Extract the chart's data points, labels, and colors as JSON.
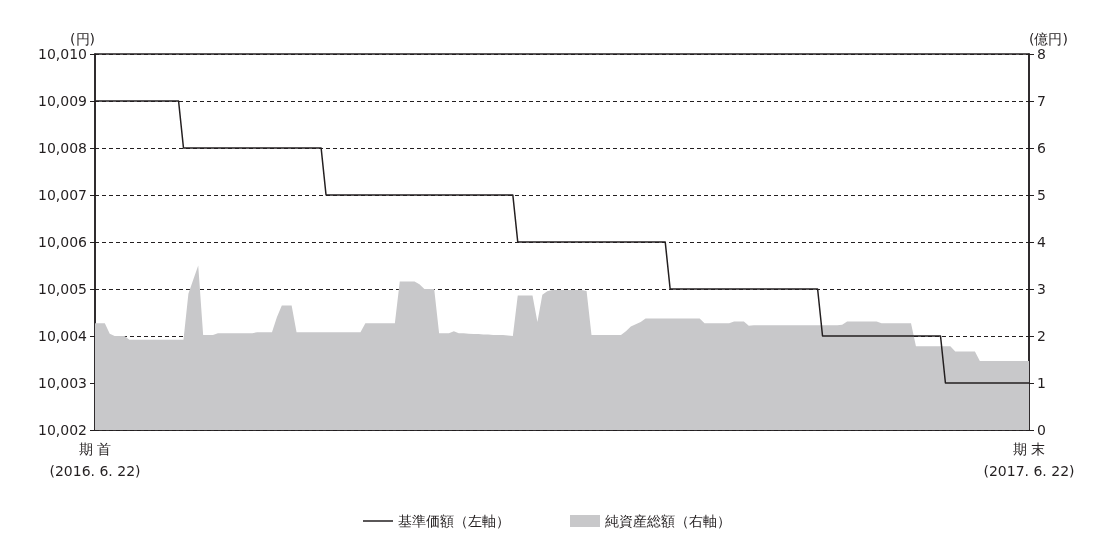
{
  "chart_data": {
    "type": "line",
    "ylabel": "(円)",
    "y2label": "(億円)",
    "categories": [
      "期 首\n(2016. 6. 22)",
      null,
      null,
      null,
      null,
      null,
      null,
      null,
      null,
      null,
      null,
      null,
      null,
      null,
      null,
      null,
      null,
      null,
      null,
      null,
      null,
      null,
      null,
      null,
      null,
      null,
      null,
      null,
      null,
      null,
      null,
      null,
      null,
      null,
      null,
      null,
      null,
      null,
      null,
      null,
      null,
      null,
      null,
      null,
      null,
      null,
      null,
      null,
      null,
      null,
      null,
      null,
      null,
      null,
      null,
      null,
      null,
      null,
      null,
      null,
      null,
      null,
      null,
      null,
      null,
      null,
      null,
      null,
      null,
      null,
      null,
      null,
      null,
      null,
      null,
      null,
      null,
      null,
      null,
      null,
      null,
      null,
      null,
      null,
      null,
      null,
      null,
      null,
      null,
      null,
      null,
      null,
      null,
      null,
      null,
      null,
      null,
      null,
      null,
      null,
      null,
      null,
      null,
      null,
      null,
      null,
      null,
      null,
      null,
      null,
      null,
      null,
      null,
      null,
      null,
      null,
      null,
      null,
      null,
      null,
      null,
      null,
      null,
      null,
      null,
      null,
      null,
      null,
      null,
      null,
      null,
      null,
      null,
      null,
      null,
      null,
      null,
      null,
      null,
      null,
      null,
      null,
      null,
      null,
      null,
      null,
      null,
      null,
      null,
      null,
      null,
      null,
      null,
      null,
      null,
      null,
      null,
      null,
      null,
      null,
      null,
      null,
      null,
      null,
      null,
      null,
      null,
      null,
      null,
      null,
      null,
      null,
      null,
      null,
      null,
      null,
      null,
      null,
      null,
      null,
      null,
      null,
      null,
      null,
      null,
      null,
      null,
      null,
      null,
      null,
      "期 末\n(2017. 6. 22)"
    ],
    "series": [
      {
        "name": "基準価額（左軸）",
        "type": "line",
        "color": "#231f20",
        "values": [
          10009,
          10009,
          10009,
          10009,
          10009,
          10009,
          10009,
          10009,
          10009,
          10009,
          10009,
          10009,
          10009,
          10009,
          10009,
          10009,
          10009,
          10009,
          10008,
          10008,
          10008,
          10008,
          10008,
          10008,
          10008,
          10008,
          10008,
          10008,
          10008,
          10008,
          10008,
          10008,
          10008,
          10008,
          10008,
          10008,
          10008,
          10008,
          10008,
          10008,
          10008,
          10008,
          10008,
          10008,
          10008,
          10008,
          10008,
          10007,
          10007,
          10007,
          10007,
          10007,
          10007,
          10007,
          10007,
          10007,
          10007,
          10007,
          10007,
          10007,
          10007,
          10007,
          10007,
          10007,
          10007,
          10007,
          10007,
          10007,
          10007,
          10007,
          10007,
          10007,
          10007,
          10007,
          10007,
          10007,
          10007,
          10007,
          10007,
          10007,
          10007,
          10007,
          10007,
          10007,
          10007,
          10007,
          10006,
          10006,
          10006,
          10006,
          10006,
          10006,
          10006,
          10006,
          10006,
          10006,
          10006,
          10006,
          10006,
          10006,
          10006,
          10006,
          10006,
          10006,
          10006,
          10006,
          10006,
          10006,
          10006,
          10006,
          10006,
          10006,
          10006,
          10006,
          10006,
          10006,
          10006,
          10005,
          10005,
          10005,
          10005,
          10005,
          10005,
          10005,
          10005,
          10005,
          10005,
          10005,
          10005,
          10005,
          10005,
          10005,
          10005,
          10005,
          10005,
          10005,
          10005,
          10005,
          10005,
          10005,
          10005,
          10005,
          10005,
          10005,
          10005,
          10005,
          10005,
          10005,
          10004,
          10004,
          10004,
          10004,
          10004,
          10004,
          10004,
          10004,
          10004,
          10004,
          10004,
          10004,
          10004,
          10004,
          10004,
          10004,
          10004,
          10004,
          10004,
          10004,
          10004,
          10004,
          10004,
          10004,
          10004,
          10003,
          10003,
          10003,
          10003,
          10003,
          10003,
          10003,
          10003,
          10003,
          10003,
          10003,
          10003,
          10003,
          10003,
          10003,
          10003,
          10003,
          10003
        ]
      },
      {
        "name": "純資産総額（右軸）",
        "type": "area",
        "axis": "y2",
        "color": "#c8c8ca",
        "values": [
          2.27,
          2.27,
          2.27,
          2.05,
          2.0,
          2.0,
          2.0,
          1.92,
          1.92,
          1.92,
          1.92,
          1.92,
          1.92,
          1.92,
          1.92,
          1.92,
          1.92,
          1.92,
          1.92,
          2.9,
          3.2,
          3.5,
          2.02,
          2.02,
          2.02,
          2.06,
          2.06,
          2.06,
          2.06,
          2.06,
          2.06,
          2.06,
          2.06,
          2.08,
          2.08,
          2.08,
          2.08,
          2.4,
          2.65,
          2.65,
          2.65,
          2.08,
          2.08,
          2.08,
          2.08,
          2.08,
          2.08,
          2.08,
          2.08,
          2.08,
          2.08,
          2.08,
          2.08,
          2.08,
          2.08,
          2.27,
          2.27,
          2.27,
          2.27,
          2.27,
          2.27,
          2.27,
          3.16,
          3.16,
          3.16,
          3.16,
          3.1,
          3.0,
          3.0,
          3.0,
          2.06,
          2.06,
          2.06,
          2.1,
          2.06,
          2.06,
          2.05,
          2.04,
          2.04,
          2.03,
          2.03,
          2.02,
          2.02,
          2.02,
          2.01,
          2.0,
          2.86,
          2.86,
          2.86,
          2.86,
          2.3,
          2.88,
          2.95,
          2.98,
          2.98,
          2.98,
          2.98,
          2.98,
          2.98,
          2.98,
          2.96,
          2.02,
          2.02,
          2.02,
          2.02,
          2.02,
          2.02,
          2.02,
          2.1,
          2.2,
          2.25,
          2.3,
          2.37,
          2.37,
          2.37,
          2.37,
          2.37,
          2.37,
          2.37,
          2.37,
          2.37,
          2.37,
          2.37,
          2.37,
          2.27,
          2.27,
          2.27,
          2.27,
          2.27,
          2.27,
          2.31,
          2.31,
          2.31,
          2.22,
          2.23,
          2.23,
          2.23,
          2.23,
          2.23,
          2.23,
          2.23,
          2.23,
          2.23,
          2.23,
          2.23,
          2.23,
          2.23,
          2.23,
          2.23,
          2.23,
          2.23,
          2.23,
          2.24,
          2.31,
          2.31,
          2.31,
          2.31,
          2.31,
          2.31,
          2.31,
          2.27,
          2.27,
          2.27,
          2.27,
          2.27,
          2.27,
          2.27,
          1.78,
          1.78,
          1.78,
          1.78,
          1.78,
          1.78,
          1.78,
          1.78,
          1.67,
          1.67,
          1.67,
          1.67,
          1.67,
          1.47,
          1.47,
          1.47,
          1.47,
          1.47,
          1.47,
          1.47,
          1.47,
          1.47,
          1.47,
          1.47
        ]
      }
    ],
    "ylim": [
      10002,
      10010
    ],
    "yticks": [
      {
        "value": 10002,
        "label": "10,002"
      },
      {
        "value": 10003,
        "label": "10,003"
      },
      {
        "value": 10004,
        "label": "10,004"
      },
      {
        "value": 10005,
        "label": "10,005"
      },
      {
        "value": 10006,
        "label": "10,006"
      },
      {
        "value": 10007,
        "label": "10,007"
      },
      {
        "value": 10008,
        "label": "10,008"
      },
      {
        "value": 10009,
        "label": "10,009"
      },
      {
        "value": 10010,
        "label": "10,010"
      }
    ],
    "y2lim": [
      0,
      8
    ],
    "y2ticks": [
      0,
      1,
      2,
      3,
      4,
      5,
      6,
      7,
      8
    ],
    "grid": "y",
    "legend": "bottom",
    "marker": "none",
    "line_style": "solid"
  }
}
